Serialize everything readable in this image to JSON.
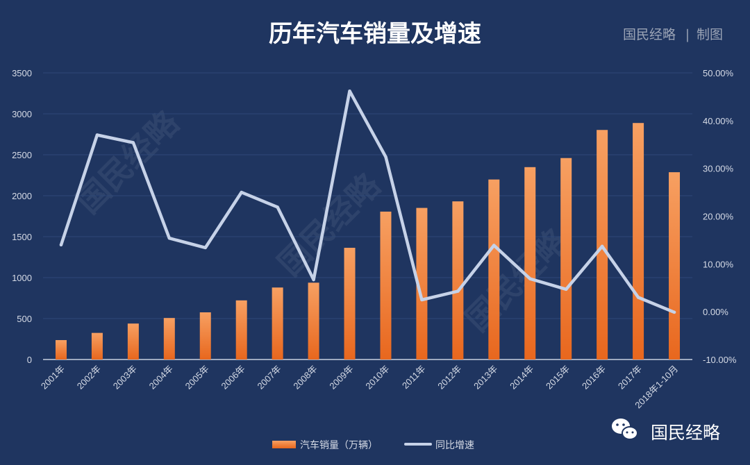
{
  "header": {
    "title": "历年汽车销量及增速",
    "brand": "国民经略",
    "brand_separator": "|",
    "brand_suffix": "制图"
  },
  "watermark_text": "国民经略",
  "footer": {
    "brand": "国民经略",
    "icon": "wechat-icon"
  },
  "colors": {
    "background": "#1f3560",
    "bar_top": "#f7a062",
    "bar_bottom": "#e8671e",
    "line": "#c6d2e8",
    "grid": "#2f4877",
    "axis": "#c9d1e0"
  },
  "chart_data": {
    "type": "bar",
    "title": "历年汽车销量及增速",
    "categories": [
      "2001年",
      "2002年",
      "2003年",
      "2004年",
      "2005年",
      "2006年",
      "2007年",
      "2008年",
      "2009年",
      "2010年",
      "2011年",
      "2012年",
      "2013年",
      "2014年",
      "2015年",
      "2016年",
      "2017年",
      "2018年1-10月"
    ],
    "series": [
      {
        "name": "汽车销量（万辆）",
        "type": "bar",
        "axis": "left",
        "values": [
          237,
          325,
          439,
          507,
          576,
          722,
          879,
          938,
          1364,
          1806,
          1851,
          1931,
          2198,
          2349,
          2460,
          2803,
          2888,
          2287
        ]
      },
      {
        "name": "同比增速",
        "type": "line",
        "axis": "right",
        "values": [
          14.0,
          37.0,
          35.4,
          15.4,
          13.4,
          25.0,
          21.9,
          6.7,
          46.2,
          32.4,
          2.5,
          4.3,
          13.9,
          6.9,
          4.7,
          13.7,
          3.0,
          -0.1
        ]
      }
    ],
    "y_left": {
      "min": 0,
      "max": 3500,
      "ticks": [
        0,
        500,
        1000,
        1500,
        2000,
        2500,
        3000,
        3500
      ],
      "labels": [
        "0",
        "500",
        "1000",
        "1500",
        "2000",
        "2500",
        "3000",
        "3500"
      ]
    },
    "y_right": {
      "min": -10,
      "max": 50,
      "ticks": [
        -10,
        0,
        10,
        20,
        30,
        40,
        50
      ],
      "labels": [
        "-10.00%",
        "0.00%",
        "10.00%",
        "20.00%",
        "30.00%",
        "40.00%",
        "50.00%"
      ]
    },
    "grid": true,
    "legend": {
      "position": "bottom",
      "items": [
        {
          "label": "汽车销量（万辆）",
          "kind": "bar"
        },
        {
          "label": "同比增速",
          "kind": "line"
        }
      ]
    }
  }
}
